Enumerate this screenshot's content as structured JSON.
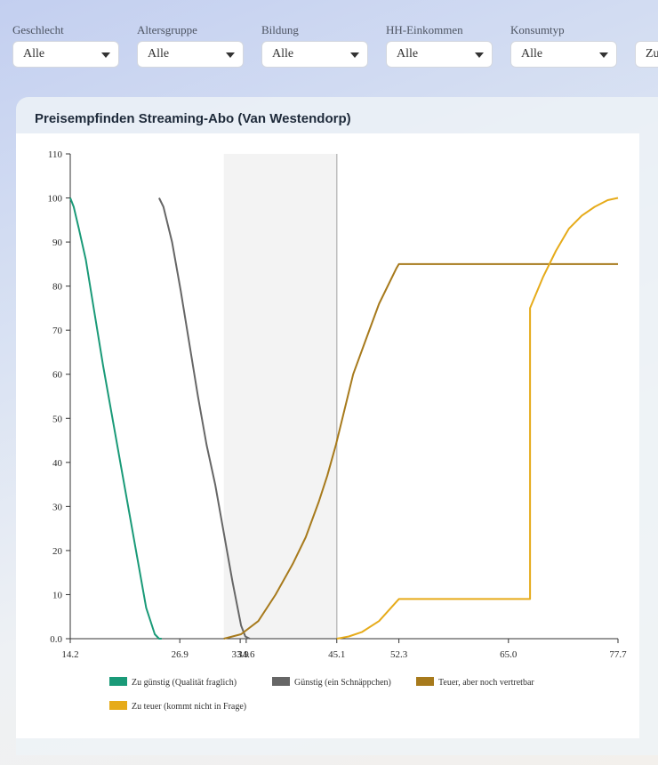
{
  "filters": [
    {
      "label": "Geschlecht",
      "value": "Alle"
    },
    {
      "label": "Altersgruppe",
      "value": "Alle"
    },
    {
      "label": "Bildung",
      "value": "Alle"
    },
    {
      "label": "HH-Einkommen",
      "value": "Alle"
    },
    {
      "label": "Konsumtyp",
      "value": "Alle"
    },
    {
      "label": "",
      "value": "Zu"
    }
  ],
  "card": {
    "title": "Preisempfinden Streaming-Abo (Van Westendorp)"
  },
  "chart_data": {
    "type": "line",
    "title": "Preisempfinden Streaming-Abo (Van Westendorp)",
    "xlim": [
      14.2,
      77.7
    ],
    "ylim": [
      0,
      110
    ],
    "x_ticks": [
      14.2,
      26.9,
      33.9,
      34.6,
      45.1,
      52.3,
      65.0,
      77.7
    ],
    "x_tick_labels": [
      "14.2",
      "26.9",
      "33.9",
      "34.6",
      "45.1",
      "52.3",
      "65.0",
      "77.7"
    ],
    "y_ticks": [
      0,
      10,
      20,
      30,
      40,
      50,
      60,
      70,
      80,
      90,
      100,
      110
    ],
    "y_tick_labels": [
      "0.0",
      "10",
      "20",
      "30",
      "40",
      "50",
      "60",
      "70",
      "80",
      "90",
      "100",
      "110"
    ],
    "acceptable_range": [
      32.0,
      45.1
    ],
    "marker_line_x": 45.1,
    "legend_position": "bottom",
    "series": [
      {
        "name": "Zu günstig (Qualität fraglich)",
        "color": "#1a9a78",
        "x": [
          14.2,
          14.6,
          15.2,
          16.0,
          17.0,
          18.0,
          19.0,
          20.0,
          21.0,
          22.0,
          23.0,
          24.0,
          24.5,
          24.8
        ],
        "y": [
          100,
          98,
          93,
          86,
          74,
          62,
          51,
          40,
          29,
          18,
          7,
          1,
          0,
          0
        ]
      },
      {
        "name": "Günstig (ein Schnäppchen)",
        "color": "#666666",
        "x": [
          24.5,
          25.0,
          26.0,
          27.0,
          28.0,
          29.0,
          30.0,
          31.0,
          32.0,
          33.0,
          34.0,
          34.5,
          35.0
        ],
        "y": [
          100,
          98,
          90,
          79,
          67,
          55,
          44,
          35,
          24,
          13,
          3,
          0.5,
          0
        ]
      },
      {
        "name": "Teuer, aber noch vertretbar",
        "color": "#a77a1c",
        "x": [
          32.0,
          34.0,
          36.0,
          38.0,
          40.0,
          41.5,
          43.0,
          44.0,
          45.0,
          46.0,
          47.0,
          48.5,
          50.0,
          52.0,
          52.3,
          77.7
        ],
        "y": [
          0,
          1,
          4,
          10,
          17,
          23,
          31,
          37,
          44,
          52,
          60,
          68,
          76,
          84,
          85,
          85
        ]
      },
      {
        "name": "Zu teuer (kommt nicht in Frage)",
        "color": "#e6ab1a",
        "x": [
          45.1,
          46.5,
          48.0,
          50.0,
          52.3,
          67.5,
          67.5,
          69.0,
          70.5,
          72.0,
          73.5,
          75.0,
          76.5,
          77.7
        ],
        "y": [
          0,
          0.5,
          1.5,
          4,
          9,
          9,
          75,
          82,
          88,
          93,
          96,
          98,
          99.5,
          100
        ]
      }
    ]
  }
}
